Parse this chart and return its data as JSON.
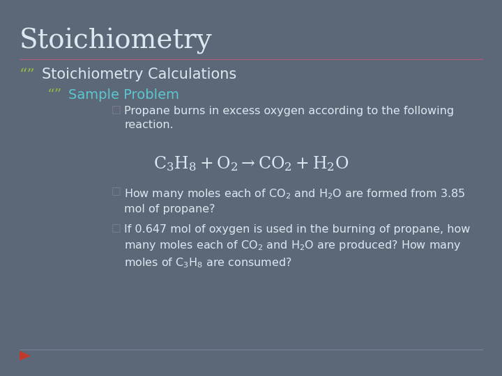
{
  "background_color": "#5c6778",
  "title": "Stoichiometry",
  "title_color": "#dde8f0",
  "title_fontsize": 28,
  "separator_color": "#b06080",
  "bullet1_text": "Stoichiometry Calculations",
  "bullet1_color": "#dde8f0",
  "bullet1_fontsize": 15,
  "bullet1_marker_color": "#8fbc45",
  "bullet2_text": "Sample Problem",
  "bullet2_color": "#5bc8d0",
  "bullet2_fontsize": 14,
  "bullet2_marker_color": "#8fbc45",
  "sub_bullet_color": "#dde8f0",
  "sub_bullet_fontsize": 11.5,
  "sub_bullet_marker_color": "#808090",
  "equation_color": "#dde8f0",
  "equation_fontsize": 17,
  "footer_arrow_color": "#c0392b",
  "bottom_line_color": "#8090a8"
}
